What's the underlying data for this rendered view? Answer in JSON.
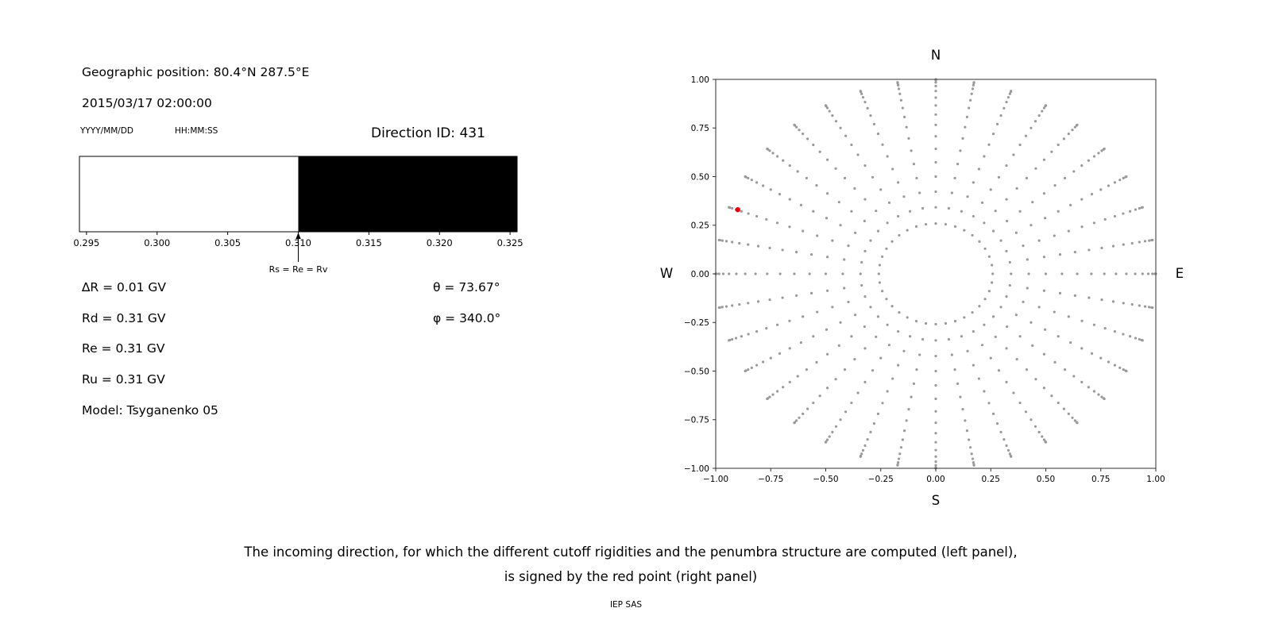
{
  "left_panel": {
    "geographic_position": "Geographic position: 80.4°N 287.5°E",
    "datetime": "2015/03/17 02:00:00",
    "date_format_label": "YYYY/MM/DD",
    "time_format_label": "HH:MM:SS",
    "direction_id": "Direction ID: 431",
    "rigidity_lines": [
      "∆R = 0.01 GV",
      "Rd = 0.31 GV",
      "Re = 0.31 GV",
      "Ru = 0.31 GV",
      "Model: Tsyganenko 05"
    ],
    "theta": "θ = 73.67°",
    "phi": "φ = 340.0°"
  },
  "caption": {
    "line1": "The incoming direction, for which the different cutoff rigidities and the penumbra structure are computed (left panel),",
    "line2": "is signed by the red point (right panel)",
    "credit": "IEP SAS"
  },
  "chart_data": [
    {
      "type": "area",
      "description": "Penumbra structure band: white = allowed rigidities, black = forbidden band",
      "xlim": [
        0.2945,
        0.3255
      ],
      "x_ticks": [
        0.295,
        0.3,
        0.305,
        0.31,
        0.315,
        0.32,
        0.325
      ],
      "x_tick_labels": [
        "0.295",
        "0.300",
        "0.305",
        "0.310",
        "0.315",
        "0.320",
        "0.325"
      ],
      "segments": [
        {
          "from": 0.2945,
          "to": 0.31,
          "color": "#ffffff"
        },
        {
          "from": 0.31,
          "to": 0.3255,
          "color": "#000000"
        }
      ],
      "marker": {
        "x": 0.31,
        "label": "Rs = Re = Rv"
      }
    },
    {
      "type": "scatter",
      "description": "Grid of incoming directions (gray dots); selected direction marked by red point",
      "xlim": [
        -1,
        1
      ],
      "ylim": [
        -1,
        1
      ],
      "grid": false,
      "x_ticks": [
        -1.0,
        -0.75,
        -0.5,
        -0.25,
        0,
        0.25,
        0.5,
        0.75,
        1.0
      ],
      "x_tick_labels": [
        "−1.00",
        "−0.75",
        "−0.50",
        "−0.25",
        "0.00",
        "0.25",
        "0.50",
        "0.75",
        "1.00"
      ],
      "y_ticks": [
        1.0,
        0.75,
        0.5,
        0.25,
        0,
        -0.25,
        -0.5,
        -0.75,
        -1.0
      ],
      "y_tick_labels": [
        "1.00",
        "0.75",
        "0.50",
        "0.25",
        "0.00",
        "−0.25",
        "−0.50",
        "−0.75",
        "−1.00"
      ],
      "compass": {
        "top": "N",
        "bottom": "S",
        "left": "W",
        "right": "E"
      },
      "gray_points": {
        "azimuth_start_deg": 0,
        "azimuth_step_deg": 10,
        "azimuth_count": 36,
        "zenith_angles_deg": [
          15,
          20,
          25,
          30,
          35,
          40,
          45,
          50,
          55,
          60,
          65,
          70,
          75,
          80,
          85,
          90
        ],
        "projection": "r = sin(zenith), angle = azimuth",
        "color": "#999999",
        "marker_radius_px": 1.6
      },
      "red_point": {
        "x": -0.9,
        "y": 0.33,
        "theta_deg": 73.67,
        "phi_deg": 340.0,
        "color": "#e8000b",
        "marker_radius_px": 3.2
      }
    }
  ]
}
